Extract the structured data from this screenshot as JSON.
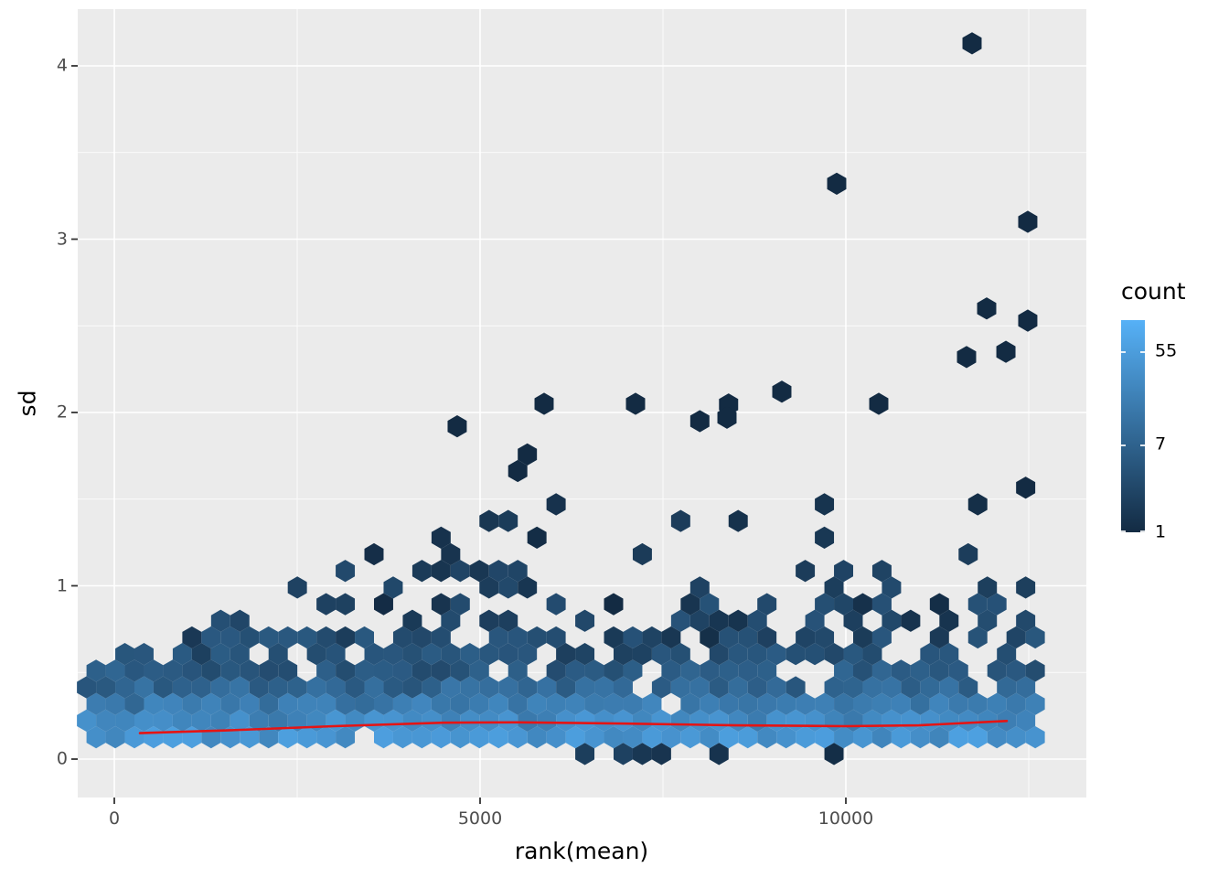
{
  "chart_data": {
    "type": "hexbin",
    "title": "",
    "xlabel": "rank(mean)",
    "ylabel": "sd",
    "x_ticks": [
      0,
      5000,
      10000
    ],
    "y_ticks": [
      0,
      1,
      2,
      3,
      4
    ],
    "x_minor": [
      2500,
      7500,
      12500
    ],
    "y_minor": [
      0.5,
      1.5,
      2.5,
      3.5
    ],
    "xlim": [
      -500,
      13290
    ],
    "ylim": [
      -0.22,
      4.33
    ],
    "grid": true,
    "figure_bg": "#FFFFFF",
    "panel_bg": "#EBEBEB",
    "grid_color": "#FFFFFF",
    "tick_color": "#333333",
    "tick_label_color": "#4D4D4D",
    "legend": {
      "title": "count",
      "position": "right",
      "ticks": [
        55,
        7,
        1
      ],
      "bar_max": 110,
      "color_low": "#132B43",
      "color_high": "#56B1F7"
    },
    "smooth_line": {
      "color": "#E51414",
      "points": [
        [
          350,
          0.15
        ],
        [
          1500,
          0.165
        ],
        [
          3000,
          0.19
        ],
        [
          4500,
          0.21
        ],
        [
          5500,
          0.212
        ],
        [
          7000,
          0.205
        ],
        [
          8500,
          0.195
        ],
        [
          10000,
          0.19
        ],
        [
          11000,
          0.195
        ],
        [
          12200,
          0.22
        ]
      ]
    },
    "hexbin": {
      "seed": 42,
      "dx": 262,
      "row_dy": 0.096,
      "hex_h": 0.128,
      "x_min": -380,
      "x_max": 12650,
      "y_row0": 0.03,
      "rows": 23,
      "bands": [
        {
          "y0": 0.0,
          "y1": 0.06,
          "density": 0.16,
          "cmin": 1,
          "cmax": 3,
          "x0": 1500,
          "x1": 12400
        },
        {
          "y0": 0.06,
          "y1": 0.16,
          "density": 0.995,
          "cmin": 22,
          "cmax": 60,
          "x0": -380
        },
        {
          "y0": 0.16,
          "y1": 0.26,
          "density": 0.995,
          "cmin": 14,
          "cmax": 45,
          "x0": -380
        },
        {
          "y0": 0.26,
          "y1": 0.36,
          "density": 0.97,
          "cmin": 8,
          "cmax": 25,
          "x0": -380
        },
        {
          "y0": 0.36,
          "y1": 0.46,
          "density": 0.95,
          "cmin": 4,
          "cmax": 14,
          "x0": -380
        },
        {
          "y0": 0.46,
          "y1": 0.56,
          "density": 0.88,
          "cmin": 3,
          "cmax": 8,
          "x0": -300
        },
        {
          "y0": 0.56,
          "y1": 0.68,
          "density": 0.8,
          "cmin": 2,
          "cmax": 6,
          "x0": -200,
          "ramp": 800
        },
        {
          "y0": 0.68,
          "y1": 0.75,
          "density": 0.62,
          "cmin": 1,
          "cmax": 5,
          "x0": 300,
          "ramp": 1500
        },
        {
          "y0": 0.75,
          "y1": 0.95,
          "density": 0.45,
          "cmin": 1,
          "cmax": 4,
          "x0": 900,
          "ramp": 2000
        },
        {
          "y0": 0.95,
          "y1": 1.1,
          "density": 0.3,
          "cmin": 1,
          "cmax": 3,
          "x0": 1600,
          "ramp": 2500
        },
        {
          "y0": 1.1,
          "y1": 1.3,
          "density": 0.2,
          "cmin": 1,
          "cmax": 2,
          "x0": 2300,
          "ramp": 2500
        },
        {
          "y0": 1.3,
          "y1": 1.55,
          "density": 0.1,
          "cmin": 1,
          "cmax": 2,
          "x0": 3000,
          "ramp": 2500
        },
        {
          "y0": 1.55,
          "y1": 1.8,
          "density": 0.06,
          "cmin": 1,
          "cmax": 1,
          "x0": 3700,
          "ramp": 2000
        },
        {
          "y0": 1.8,
          "y1": 2.15,
          "density": 0.035,
          "cmin": 1,
          "cmax": 1,
          "x0": 4400,
          "ramp": 2000
        }
      ],
      "outliers": [
        [
          11725,
          4.13
        ],
        [
          9875,
          3.32
        ],
        [
          12487,
          3.1
        ],
        [
          11925,
          2.6
        ],
        [
          12487,
          2.53
        ],
        [
          12188,
          2.35
        ],
        [
          11650,
          2.32
        ],
        [
          9125,
          2.12
        ],
        [
          5875,
          2.05
        ],
        [
          7125,
          2.05
        ],
        [
          10450,
          2.05
        ],
        [
          8375,
          1.97
        ],
        [
          4687,
          1.92
        ]
      ]
    }
  }
}
